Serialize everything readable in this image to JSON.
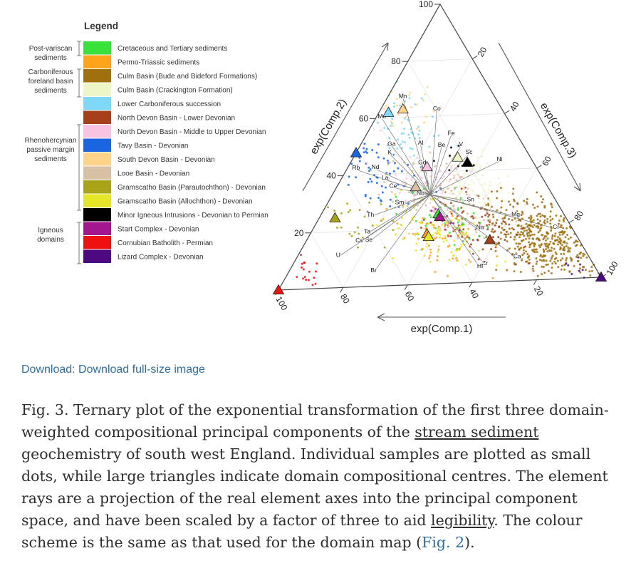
{
  "legend": {
    "title": "Legend",
    "groups": [
      {
        "label": "Post-variscan sediments"
      },
      {
        "label": "Carboniferous foreland basin sediments"
      },
      {
        "label": "Rhenohercynian passive margin sediments"
      },
      {
        "label": "Igneous domains"
      }
    ],
    "items": [
      {
        "label": "Cretaceous and Tertiary sediments",
        "color": "#39e23a"
      },
      {
        "label": "Permo-Triassic sediments",
        "color": "#ffa31a"
      },
      {
        "label": "Culm Basin (Bude and Bideford Formations)",
        "color": "#a0700f"
      },
      {
        "label": "Culm Basin (Crackington Formation)",
        "color": "#eef5c6"
      },
      {
        "label": "Lower Carboniferous succession",
        "color": "#7fd8f7"
      },
      {
        "label": "North Devon Basin - Lower Devonian",
        "color": "#a6401a"
      },
      {
        "label": "North Devon Basin - Middle to Upper Devonian",
        "color": "#f8c4e2"
      },
      {
        "label": "Tavy Basin - Devonian",
        "color": "#1a66e0"
      },
      {
        "label": "South Devon Basin - Devonian",
        "color": "#ffd38a"
      },
      {
        "label": "Looe Basin - Devonian",
        "color": "#d8c0a4"
      },
      {
        "label": "Gramscatho Basin (Parautochthon) - Devonian",
        "color": "#a8a317"
      },
      {
        "label": "Gramscatho Basin (Allochthon) - Devonian",
        "color": "#e6e628"
      },
      {
        "label": "Minor Igneous Intrusions - Devonian to Permian",
        "color": "#000000"
      },
      {
        "label": "Start Complex - Devonian",
        "color": "#a3168e"
      },
      {
        "label": "Cornubian Batholith - Permian",
        "color": "#ee1111"
      },
      {
        "label": "Lizard Complex - Devonian",
        "color": "#4d0a80"
      }
    ]
  },
  "chart_data": {
    "type": "scatter",
    "subtype": "ternary",
    "axes": {
      "a_label": "exp(Comp.1)",
      "b_label": "exp(Comp.2)",
      "c_label": "exp(Comp.3)",
      "ticks": [
        "20",
        "40",
        "60",
        "80",
        "100"
      ]
    },
    "centres": [
      {
        "domain": "Cretaceous and Tertiary sediments",
        "comp1": 38,
        "comp2": 25,
        "comp3": 37
      },
      {
        "domain": "Permo-Triassic sediments",
        "comp1": 45,
        "comp2": 18,
        "comp3": 37
      },
      {
        "domain": "Culm Basin (Bude and Bideford Formations)",
        "comp1": 20,
        "comp2": 43,
        "comp3": 37
      },
      {
        "domain": "Culm Basin (Crackington Formation)",
        "comp1": 22,
        "comp2": 45,
        "comp3": 33
      },
      {
        "domain": "Lower Carboniferous succession",
        "comp1": 35,
        "comp2": 62,
        "comp3": 3
      },
      {
        "domain": "North Devon Basin - Lower Devonian",
        "comp1": 27,
        "comp2": 15,
        "comp3": 58
      },
      {
        "domain": "North Devon Basin - Middle to Upper Devonian",
        "comp1": 33,
        "comp2": 42,
        "comp3": 25
      },
      {
        "domain": "Tavy Basin - Devonian",
        "comp1": 52,
        "comp2": 48,
        "comp3": 0
      },
      {
        "domain": "South Devon Basin - Devonian",
        "comp1": 30,
        "comp2": 63,
        "comp3": 7
      },
      {
        "domain": "Looe Basin - Devonian",
        "comp1": 40,
        "comp2": 35,
        "comp3": 25
      },
      {
        "domain": "Gramscatho Basin (Parautochthon) - Devonian",
        "comp1": 70,
        "comp2": 25,
        "comp3": 5
      },
      {
        "domain": "Gramscatho Basin (Allochthon) - Devonian",
        "comp1": 45,
        "comp2": 17,
        "comp3": 38
      },
      {
        "domain": "Minor Igneous Intrusions - Devonian to Permian",
        "comp1": 20,
        "comp2": 43,
        "comp3": 37
      },
      {
        "domain": "Start Complex - Devonian",
        "comp1": 38,
        "comp2": 24,
        "comp3": 38
      },
      {
        "domain": "Cornubian Batholith - Permian",
        "comp1": 100,
        "comp2": 0,
        "comp3": 0
      },
      {
        "domain": "Lizard Complex - Devonian",
        "comp1": 0,
        "comp2": 0,
        "comp3": 100
      }
    ],
    "element_rays": [
      {
        "label": "Mn",
        "comp1": 28,
        "comp2": 67,
        "comp3": 5
      },
      {
        "label": "Mo",
        "comp1": 38,
        "comp2": 60,
        "comp3": 2
      },
      {
        "label": "Co",
        "comp1": 20,
        "comp2": 62,
        "comp3": 18
      },
      {
        "label": "Fe",
        "comp1": 20,
        "comp2": 53,
        "comp3": 27
      },
      {
        "label": "Ga",
        "comp1": 40,
        "comp2": 50,
        "comp3": 10
      },
      {
        "label": "Al",
        "comp1": 31,
        "comp2": 50,
        "comp3": 19
      },
      {
        "label": "Be",
        "comp1": 25,
        "comp2": 49,
        "comp3": 26
      },
      {
        "label": "V",
        "comp1": 19,
        "comp2": 49,
        "comp3": 32
      },
      {
        "label": "Sc",
        "comp1": 18,
        "comp2": 46,
        "comp3": 36
      },
      {
        "label": "Ni",
        "comp1": 10,
        "comp2": 43,
        "comp3": 47
      },
      {
        "label": "K",
        "comp1": 42,
        "comp2": 47,
        "comp3": 11
      },
      {
        "label": "Rb",
        "comp1": 55,
        "comp2": 42,
        "comp3": 3
      },
      {
        "label": "Nd",
        "comp1": 49,
        "comp2": 42,
        "comp3": 9
      },
      {
        "label": "Gd",
        "comp1": 34,
        "comp2": 43,
        "comp3": 23
      },
      {
        "label": "La",
        "comp1": 48,
        "comp2": 38,
        "comp3": 14
      },
      {
        "label": "Ce",
        "comp1": 47,
        "comp2": 35,
        "comp3": 18
      },
      {
        "label": "Nb",
        "comp1": 40,
        "comp2": 32,
        "comp3": 28
      },
      {
        "label": "Sm",
        "comp1": 48,
        "comp2": 29,
        "comp3": 23
      },
      {
        "label": "Sn",
        "comp1": 26,
        "comp2": 29,
        "comp3": 45
      },
      {
        "label": "Th",
        "comp1": 59,
        "comp2": 25,
        "comp3": 16
      },
      {
        "label": "Mg",
        "comp1": 15,
        "comp2": 23,
        "comp3": 62
      },
      {
        "label": "Ta",
        "comp1": 63,
        "comp2": 19,
        "comp3": 18
      },
      {
        "label": "Na",
        "comp1": 28,
        "comp2": 19,
        "comp3": 53
      },
      {
        "label": "Cs",
        "comp1": 67,
        "comp2": 16,
        "comp3": 17
      },
      {
        "label": "Se",
        "comp1": 64,
        "comp2": 16,
        "comp3": 20
      },
      {
        "label": "Cr",
        "comp1": 5,
        "comp2": 18,
        "comp3": 77
      },
      {
        "label": "U",
        "comp1": 76,
        "comp2": 11,
        "comp3": 13
      },
      {
        "label": "Ca",
        "comp1": 22,
        "comp2": 8,
        "comp3": 70
      },
      {
        "label": "Zr",
        "comp1": 33,
        "comp2": 6,
        "comp3": 61
      },
      {
        "label": "Hf",
        "comp1": 35,
        "comp2": 5,
        "comp3": 60
      },
      {
        "label": "Br",
        "comp1": 68,
        "comp2": 5,
        "comp3": 27
      }
    ],
    "origin": {
      "comp1": 37,
      "comp2": 32,
      "comp3": 31
    },
    "grid": true
  },
  "download": {
    "label": "Download: Download full-size image"
  },
  "caption": {
    "part1": "Fig. 3. Ternary plot of the exponential transformation of the first three domain-weighted compositional principal components of the ",
    "link1": "stream sediment",
    "part2": " geochemistry of south west England. Individual samples are plotted as small dots, while large triangles indicate domain compositional centres. The element rays are a projection of the real element axes into the principal component space, and have been scaled by a factor of three to aid ",
    "link2": "legibility",
    "part3": ". The colour scheme is the same as that used for the domain map (",
    "link3": "Fig. 2",
    "part4": ")."
  }
}
